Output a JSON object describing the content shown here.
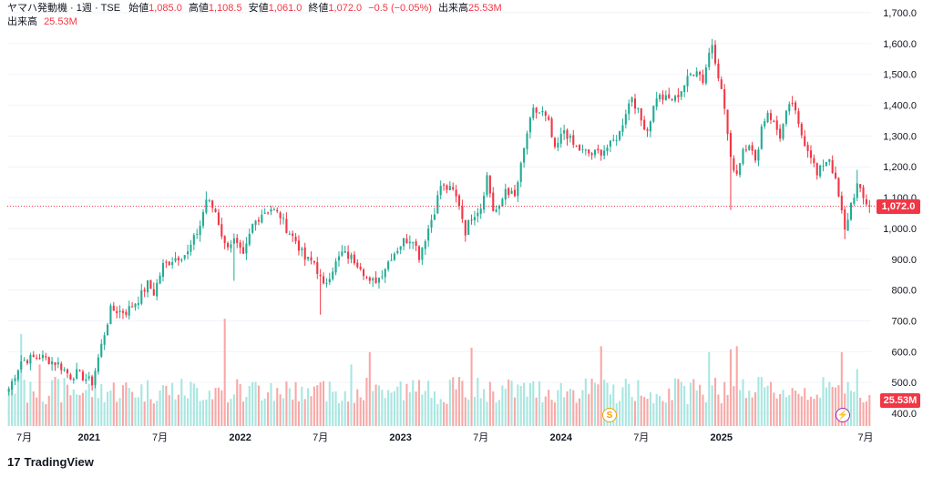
{
  "legend": {
    "symbol": "ヤマハ発動機 · 1週 · TSE",
    "open_label": "始値",
    "open": "1,085.0",
    "high_label": "高値",
    "high": "1,108.5",
    "low_label": "安値",
    "low": "1,061.0",
    "close_label": "終値",
    "close": "1,072.0",
    "change": "−0.5 (−0.05%)",
    "volume_label": "出来高",
    "volume": "25.53M"
  },
  "price_tag": "1,072.0",
  "volume_tag": "25.53M",
  "events": {
    "split": "S",
    "flash": "⚡"
  },
  "branding": {
    "logo_mark": "17",
    "name": "TradingView"
  },
  "colors": {
    "up": "#22ab94",
    "down": "#f23645",
    "vol_up": "#a8e6e0",
    "vol_down": "#f7a9a7",
    "grid": "#f0f3fa",
    "last_line": "#f23645"
  },
  "chart_data": {
    "type": "candlestick",
    "title": "ヤマハ発動機 · 1週 · TSE",
    "y_ticks": [
      "1,700.0",
      "1,600.0",
      "1,500.0",
      "1,400.0",
      "1,300.0",
      "1,200.0",
      "1,100.0",
      "1,000.0",
      "900.0",
      "800.0",
      "700.0",
      "600.0",
      "500.0",
      "400.0"
    ],
    "y_tick_values": [
      1700,
      1600,
      1500,
      1400,
      1300,
      1200,
      1100,
      1000,
      900,
      800,
      700,
      600,
      500,
      400
    ],
    "x_ticks": [
      "7月",
      "2021",
      "7月",
      "2022",
      "7月",
      "2023",
      "7月",
      "2024",
      "7月",
      "2025",
      "7月"
    ],
    "ylim": [
      370,
      1730
    ],
    "last_close": 1072.0,
    "anchors": [
      {
        "i": 0,
        "p": 480
      },
      {
        "i": 4,
        "p": 570
      },
      {
        "i": 10,
        "p": 585
      },
      {
        "i": 16,
        "p": 560
      },
      {
        "i": 20,
        "p": 520
      },
      {
        "i": 22,
        "p": 530
      },
      {
        "i": 27,
        "p": 500
      },
      {
        "i": 31,
        "p": 660
      },
      {
        "i": 33,
        "p": 735
      },
      {
        "i": 38,
        "p": 730
      },
      {
        "i": 42,
        "p": 770
      },
      {
        "i": 45,
        "p": 820
      },
      {
        "i": 47,
        "p": 790
      },
      {
        "i": 50,
        "p": 880
      },
      {
        "i": 54,
        "p": 905
      },
      {
        "i": 58,
        "p": 920
      },
      {
        "i": 62,
        "p": 1010
      },
      {
        "i": 64,
        "p": 1095
      },
      {
        "i": 67,
        "p": 1055
      },
      {
        "i": 70,
        "p": 945
      },
      {
        "i": 73,
        "p": 960
      },
      {
        "i": 76,
        "p": 905
      },
      {
        "i": 79,
        "p": 1010
      },
      {
        "i": 82,
        "p": 1050
      },
      {
        "i": 85,
        "p": 1065
      },
      {
        "i": 88,
        "p": 1040
      },
      {
        "i": 90,
        "p": 1000
      },
      {
        "i": 93,
        "p": 960
      },
      {
        "i": 96,
        "p": 900
      },
      {
        "i": 99,
        "p": 890
      },
      {
        "i": 102,
        "p": 810
      },
      {
        "i": 105,
        "p": 870
      },
      {
        "i": 108,
        "p": 920
      },
      {
        "i": 111,
        "p": 905
      },
      {
        "i": 114,
        "p": 880
      },
      {
        "i": 117,
        "p": 820
      },
      {
        "i": 120,
        "p": 840
      },
      {
        "i": 124,
        "p": 910
      },
      {
        "i": 128,
        "p": 960
      },
      {
        "i": 131,
        "p": 970
      },
      {
        "i": 133,
        "p": 910
      },
      {
        "i": 136,
        "p": 1000
      },
      {
        "i": 138,
        "p": 1060
      },
      {
        "i": 140,
        "p": 1140
      },
      {
        "i": 144,
        "p": 1120
      },
      {
        "i": 146,
        "p": 1080
      },
      {
        "i": 148,
        "p": 990
      },
      {
        "i": 150,
        "p": 1040
      },
      {
        "i": 153,
        "p": 1070
      },
      {
        "i": 155,
        "p": 1170
      },
      {
        "i": 157,
        "p": 1060
      },
      {
        "i": 159,
        "p": 1060
      },
      {
        "i": 161,
        "p": 1130
      },
      {
        "i": 164,
        "p": 1100
      },
      {
        "i": 166,
        "p": 1200
      },
      {
        "i": 168,
        "p": 1310
      },
      {
        "i": 170,
        "p": 1380
      },
      {
        "i": 173,
        "p": 1375
      },
      {
        "i": 175,
        "p": 1340
      },
      {
        "i": 177,
        "p": 1250
      },
      {
        "i": 180,
        "p": 1320
      },
      {
        "i": 183,
        "p": 1270
      },
      {
        "i": 186,
        "p": 1250
      },
      {
        "i": 189,
        "p": 1240
      },
      {
        "i": 192,
        "p": 1250
      },
      {
        "i": 195,
        "p": 1270
      },
      {
        "i": 198,
        "p": 1310
      },
      {
        "i": 200,
        "p": 1380
      },
      {
        "i": 202,
        "p": 1430
      },
      {
        "i": 205,
        "p": 1350
      },
      {
        "i": 207,
        "p": 1320
      },
      {
        "i": 210,
        "p": 1430
      },
      {
        "i": 213,
        "p": 1420
      },
      {
        "i": 216,
        "p": 1420
      },
      {
        "i": 218,
        "p": 1450
      },
      {
        "i": 221,
        "p": 1500
      },
      {
        "i": 223,
        "p": 1520
      },
      {
        "i": 225,
        "p": 1480
      },
      {
        "i": 227,
        "p": 1570
      },
      {
        "i": 228,
        "p": 1600
      },
      {
        "i": 230,
        "p": 1500
      },
      {
        "i": 232,
        "p": 1390
      },
      {
        "i": 234,
        "p": 1220
      },
      {
        "i": 236,
        "p": 1180
      },
      {
        "i": 238,
        "p": 1260
      },
      {
        "i": 240,
        "p": 1280
      },
      {
        "i": 242,
        "p": 1210
      },
      {
        "i": 244,
        "p": 1330
      },
      {
        "i": 246,
        "p": 1380
      },
      {
        "i": 248,
        "p": 1340
      },
      {
        "i": 250,
        "p": 1300
      },
      {
        "i": 252,
        "p": 1370
      },
      {
        "i": 254,
        "p": 1410
      },
      {
        "i": 256,
        "p": 1330
      },
      {
        "i": 258,
        "p": 1280
      },
      {
        "i": 260,
        "p": 1240
      },
      {
        "i": 262,
        "p": 1170
      },
      {
        "i": 264,
        "p": 1210
      },
      {
        "i": 266,
        "p": 1230
      },
      {
        "i": 268,
        "p": 1150
      },
      {
        "i": 270,
        "p": 1050
      },
      {
        "i": 271,
        "p": 990
      },
      {
        "i": 273,
        "p": 1080
      },
      {
        "i": 275,
        "p": 1140
      },
      {
        "i": 277,
        "p": 1095
      },
      {
        "i": 279,
        "p": 1072
      }
    ],
    "wicks": [
      {
        "i": 64,
        "high": 1120
      },
      {
        "i": 73,
        "low": 830
      },
      {
        "i": 101,
        "low": 720
      },
      {
        "i": 228,
        "high": 1615
      },
      {
        "i": 234,
        "low": 1060
      },
      {
        "i": 254,
        "high": 1430
      },
      {
        "i": 271,
        "low": 965
      },
      {
        "i": 275,
        "high": 1190
      }
    ],
    "volume_axis_baseline": 400,
    "volume_spikes": [
      {
        "i": 4,
        "v": 660
      },
      {
        "i": 10,
        "v": 560
      },
      {
        "i": 70,
        "v": 710
      },
      {
        "i": 111,
        "v": 560
      },
      {
        "i": 117,
        "v": 600
      },
      {
        "i": 150,
        "v": 615
      },
      {
        "i": 192,
        "v": 620
      },
      {
        "i": 227,
        "v": 600
      },
      {
        "i": 234,
        "v": 610
      },
      {
        "i": 236,
        "v": 620
      },
      {
        "i": 270,
        "v": 600
      },
      {
        "i": 275,
        "v": 545
      }
    ],
    "n": 280
  }
}
